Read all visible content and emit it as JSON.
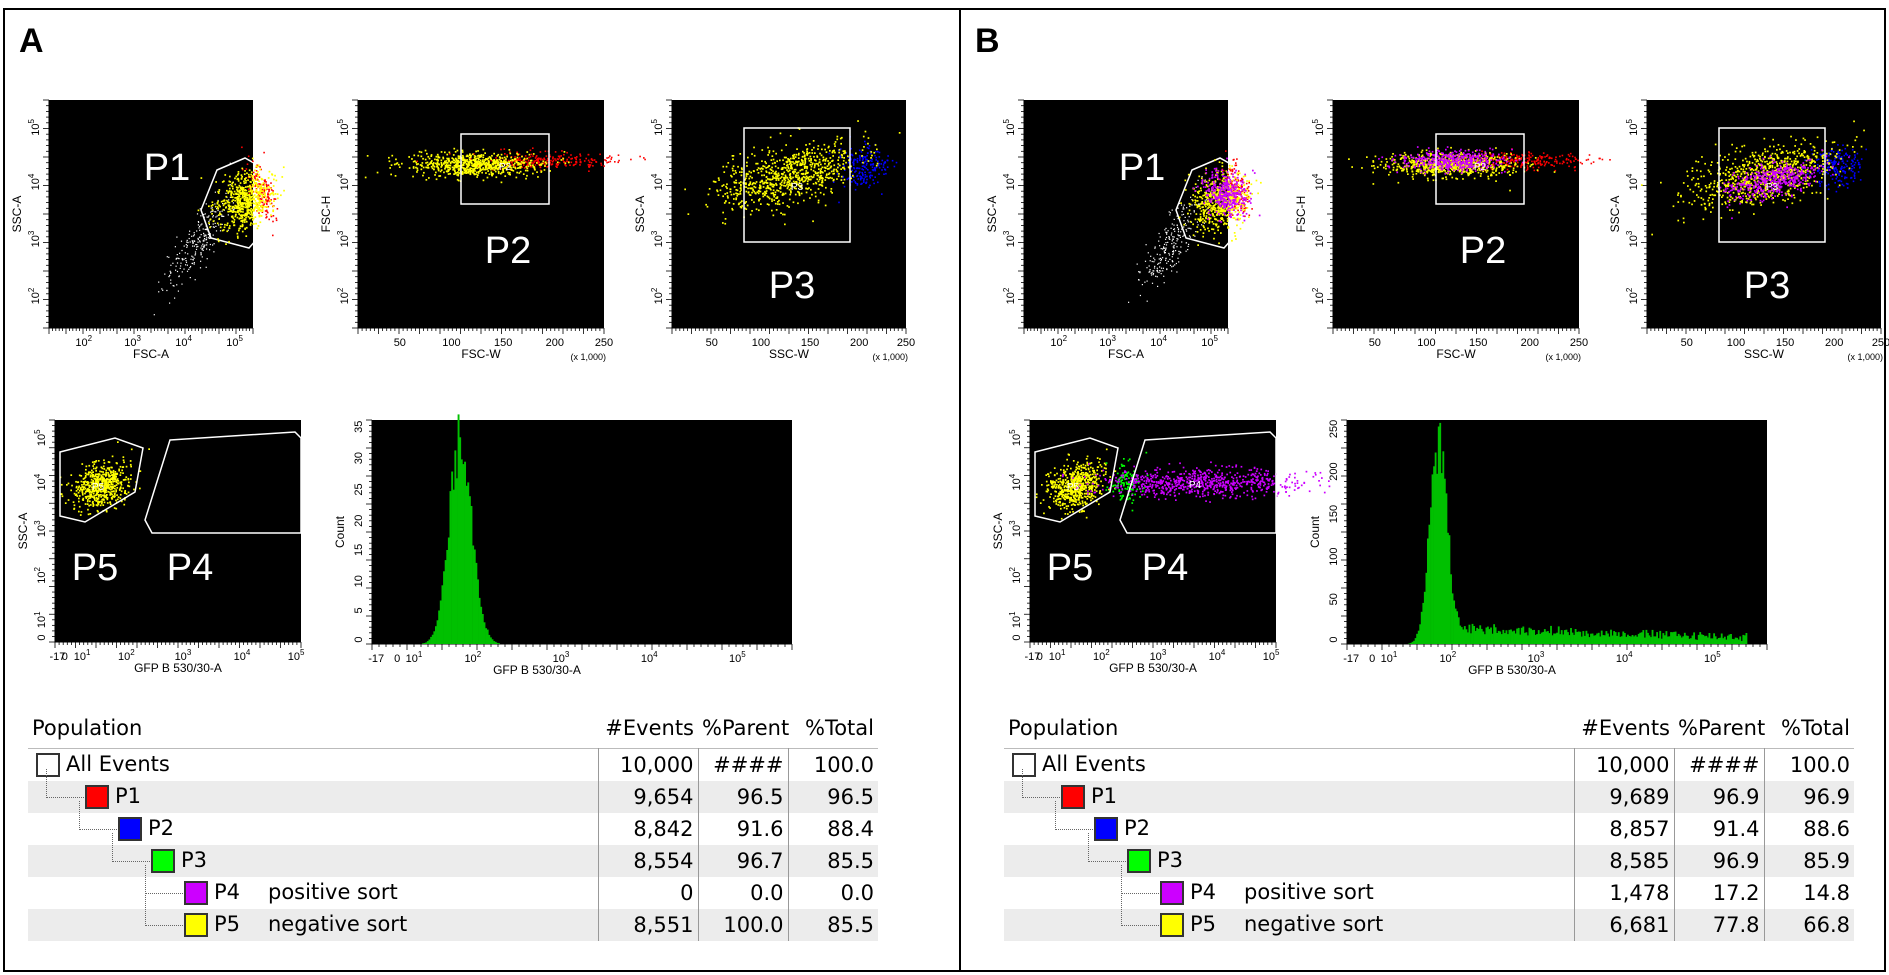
{
  "panels": [
    {
      "id": "A",
      "letter": "A",
      "gate_labels": {
        "p1": "P1",
        "p2": "P2",
        "p3": "P3",
        "p5": "P5",
        "p4": "P4"
      },
      "gate_inner": {
        "p2": "P2",
        "p3": "P3",
        "p5": "P5",
        "p4": "P4"
      },
      "table": {
        "headers": [
          "Population",
          "#Events",
          "%Parent",
          "%Total"
        ],
        "rows": [
          {
            "name": "All Events",
            "desc": "",
            "events": "10,000",
            "parent": "####",
            "total": "100.0",
            "color": "#ffffff",
            "level": 0
          },
          {
            "name": "P1",
            "desc": "",
            "events": "9,654",
            "parent": "96.5",
            "total": "96.5",
            "color": "#ff0000",
            "level": 1
          },
          {
            "name": "P2",
            "desc": "",
            "events": "8,842",
            "parent": "91.6",
            "total": "88.4",
            "color": "#0000ff",
            "level": 2
          },
          {
            "name": "P3",
            "desc": "",
            "events": "8,554",
            "parent": "96.7",
            "total": "85.5",
            "color": "#00ff00",
            "level": 3
          },
          {
            "name": "P4",
            "desc": "positive sort",
            "events": "0",
            "parent": "0.0",
            "total": "0.0",
            "color": "#cc00ff",
            "level": 4
          },
          {
            "name": "P5",
            "desc": "negative sort",
            "events": "8,551",
            "parent": "100.0",
            "total": "85.5",
            "color": "#ffff00",
            "level": 4
          }
        ]
      }
    },
    {
      "id": "B",
      "letter": "B",
      "gate_labels": {
        "p1": "P1",
        "p2": "P2",
        "p3": "P3",
        "p5": "P5",
        "p4": "P4"
      },
      "gate_inner": {
        "p2": "P2",
        "p3": "P3",
        "p5": "P5",
        "p4": "P4"
      },
      "table": {
        "headers": [
          "Population",
          "#Events",
          "%Parent",
          "%Total"
        ],
        "rows": [
          {
            "name": "All Events",
            "desc": "",
            "events": "10,000",
            "parent": "####",
            "total": "100.0",
            "color": "#ffffff",
            "level": 0
          },
          {
            "name": "P1",
            "desc": "",
            "events": "9,689",
            "parent": "96.9",
            "total": "96.9",
            "color": "#ff0000",
            "level": 1
          },
          {
            "name": "P2",
            "desc": "",
            "events": "8,857",
            "parent": "91.4",
            "total": "88.6",
            "color": "#0000ff",
            "level": 2
          },
          {
            "name": "P3",
            "desc": "",
            "events": "8,585",
            "parent": "96.9",
            "total": "85.9",
            "color": "#00ff00",
            "level": 3
          },
          {
            "name": "P4",
            "desc": "positive sort",
            "events": "1,478",
            "parent": "17.2",
            "total": "14.8",
            "color": "#cc00ff",
            "level": 4
          },
          {
            "name": "P5",
            "desc": "negative sort",
            "events": "6,681",
            "parent": "77.8",
            "total": "66.8",
            "color": "#ffff00",
            "level": 4
          }
        ]
      }
    }
  ],
  "chart_data": [
    {
      "panel": "A",
      "type": "scatter",
      "xlabel": "FSC-A",
      "ylabel": "SSC-A",
      "xscale": "log",
      "yscale": "log",
      "xticks": [
        "10^2",
        "10^3",
        "10^4",
        "10^5"
      ],
      "yticks": [
        "10^2",
        "10^3",
        "10^4",
        "10^5"
      ],
      "populations": [
        {
          "gate": "P1",
          "color": "#ffff00"
        },
        {
          "gate": "outside",
          "color": "#ffffff"
        },
        {
          "gate": "edge",
          "color": "#ff0000"
        }
      ]
    },
    {
      "panel": "A",
      "type": "scatter",
      "xlabel": "FSC-W",
      "ylabel": "FSC-H",
      "xunit": "(x 1,000)",
      "xticks": [
        "50",
        "100",
        "150",
        "200",
        "250"
      ],
      "yticks": [
        "10^2",
        "10^3",
        "10^4",
        "10^5"
      ],
      "populations": [
        {
          "gate": "P2",
          "color": "#ffff00"
        },
        {
          "gate": "outside",
          "color": "#ff0000"
        }
      ]
    },
    {
      "panel": "A",
      "type": "scatter",
      "xlabel": "SSC-W",
      "ylabel": "SSC-A",
      "xunit": "(x 1,000)",
      "xticks": [
        "50",
        "100",
        "150",
        "200",
        "250"
      ],
      "yticks": [
        "10^2",
        "10^3",
        "10^4",
        "10^5"
      ],
      "populations": [
        {
          "gate": "P3",
          "color": "#ffff00"
        },
        {
          "gate": "outside",
          "color": "#0000ff"
        }
      ]
    },
    {
      "panel": "A",
      "type": "scatter",
      "xlabel": "GFP B 530/30-A",
      "ylabel": "SSC-A",
      "xticks": [
        "-17",
        "0",
        "10^1",
        "10^2",
        "10^3",
        "10^4",
        "10^5"
      ],
      "yticks": [
        "0",
        "10^1",
        "10^2",
        "10^3",
        "10^4",
        "10^5"
      ],
      "populations": [
        {
          "gate": "P5",
          "color": "#ffff00"
        }
      ]
    },
    {
      "panel": "A",
      "type": "histogram",
      "xlabel": "GFP B 530/30-A",
      "ylabel": "Count",
      "ylim": [
        0,
        35
      ],
      "xticks": [
        "-17",
        "0",
        "10^1",
        "10^2",
        "10^3",
        "10^4",
        "10^5"
      ],
      "yticks": [
        "0",
        "5",
        "10",
        "15",
        "20",
        "25",
        "30",
        "35"
      ],
      "peak_x": "10^2",
      "peak_count": 35,
      "color": "#00c000"
    },
    {
      "panel": "B",
      "type": "scatter",
      "xlabel": "FSC-A",
      "ylabel": "SSC-A",
      "xscale": "log",
      "yscale": "log",
      "xticks": [
        "10^2",
        "10^3",
        "10^4",
        "10^5"
      ],
      "yticks": [
        "10^2",
        "10^3",
        "10^4",
        "10^5"
      ],
      "populations": [
        {
          "gate": "P1",
          "color": "#cc00ff"
        },
        {
          "gate": "P1",
          "color": "#ffff00"
        },
        {
          "gate": "outside",
          "color": "#ffffff"
        },
        {
          "gate": "edge",
          "color": "#ff0000"
        }
      ]
    },
    {
      "panel": "B",
      "type": "scatter",
      "xlabel": "FSC-W",
      "ylabel": "FSC-H",
      "xunit": "(x 1,000)",
      "xticks": [
        "50",
        "100",
        "150",
        "200",
        "250"
      ],
      "yticks": [
        "10^2",
        "10^3",
        "10^4",
        "10^5"
      ],
      "populations": [
        {
          "gate": "P2",
          "color": "#cc00ff"
        },
        {
          "gate": "P2",
          "color": "#ffff00"
        },
        {
          "gate": "outside",
          "color": "#ff0000"
        }
      ]
    },
    {
      "panel": "B",
      "type": "scatter",
      "xlabel": "SSC-W",
      "ylabel": "SSC-A",
      "xunit": "(x 1,000)",
      "xticks": [
        "50",
        "100",
        "150",
        "200",
        "250"
      ],
      "yticks": [
        "10^2",
        "10^3",
        "10^4",
        "10^5"
      ],
      "populations": [
        {
          "gate": "P3",
          "color": "#cc00ff"
        },
        {
          "gate": "P3",
          "color": "#ffff00"
        },
        {
          "gate": "outside",
          "color": "#0000ff"
        }
      ]
    },
    {
      "panel": "B",
      "type": "scatter",
      "xlabel": "GFP B 530/30-A",
      "ylabel": "SSC-A",
      "xticks": [
        "-17",
        "0",
        "10^1",
        "10^2",
        "10^3",
        "10^4",
        "10^5"
      ],
      "yticks": [
        "0",
        "10^1",
        "10^2",
        "10^3",
        "10^4",
        "10^5"
      ],
      "populations": [
        {
          "gate": "P5",
          "color": "#ffff00"
        },
        {
          "gate": "between",
          "color": "#00ff00"
        },
        {
          "gate": "P4",
          "color": "#cc00ff"
        }
      ]
    },
    {
      "panel": "B",
      "type": "histogram",
      "xlabel": "GFP B 530/30-A",
      "ylabel": "Count",
      "ylim": [
        0,
        250
      ],
      "xticks": [
        "-17",
        "0",
        "10^1",
        "10^2",
        "10^3",
        "10^4",
        "10^5"
      ],
      "yticks": [
        "0",
        "50",
        "100",
        "150",
        "200",
        "250"
      ],
      "peak_x": "10^2",
      "peak_count": 265,
      "tail": true,
      "color": "#00c000"
    }
  ]
}
